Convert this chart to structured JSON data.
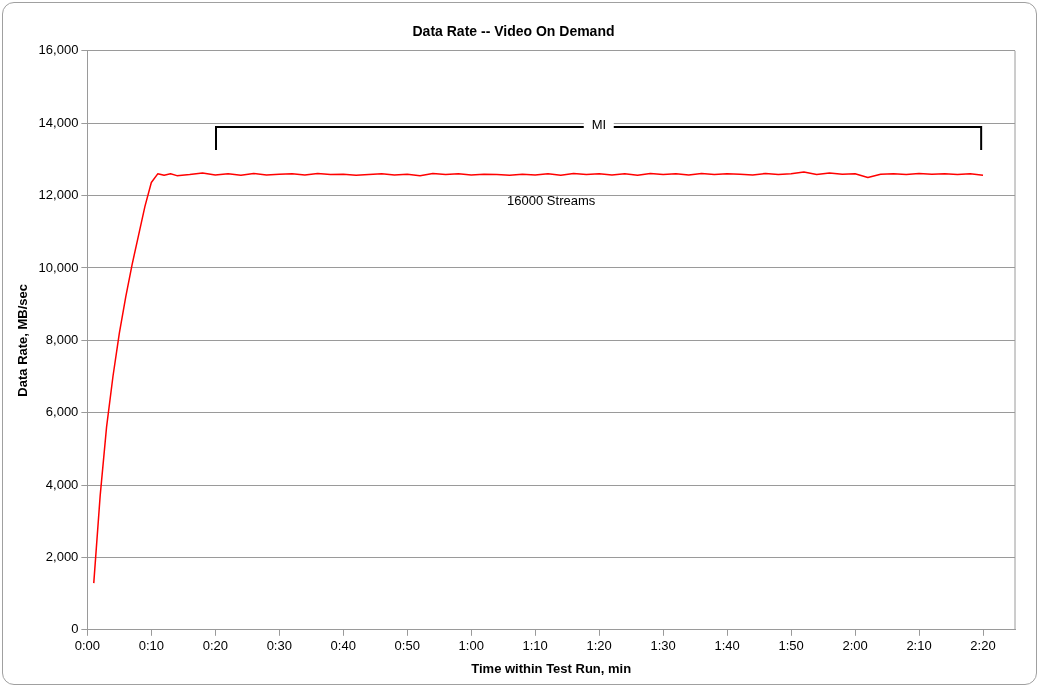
{
  "chart_data": {
    "type": "line",
    "title": "Data Rate -- Video On Demand",
    "xlabel": "Time within Test Run, min",
    "ylabel": "Data Rate, MB/sec",
    "series": [
      {
        "name": "16000 Streams",
        "color": "#ff0000",
        "x": [
          1,
          2,
          3,
          4,
          5,
          6,
          7,
          8,
          9,
          10,
          11,
          12,
          13,
          14,
          16,
          18,
          20,
          22,
          24,
          26,
          28,
          30,
          32,
          34,
          36,
          38,
          40,
          42,
          44,
          46,
          48,
          50,
          52,
          54,
          56,
          58,
          60,
          62,
          64,
          66,
          68,
          70,
          72,
          74,
          76,
          78,
          80,
          82,
          84,
          86,
          88,
          90,
          92,
          94,
          96,
          98,
          100,
          102,
          104,
          106,
          108,
          110,
          112,
          114,
          116,
          118,
          120,
          122,
          124,
          126,
          128,
          130,
          132,
          134,
          136,
          138,
          140
        ],
        "values": [
          1290,
          3700,
          5600,
          7000,
          8200,
          9200,
          10100,
          10900,
          11700,
          12360,
          12600,
          12560,
          12600,
          12550,
          12580,
          12620,
          12570,
          12600,
          12560,
          12610,
          12570,
          12590,
          12600,
          12570,
          12610,
          12580,
          12590,
          12560,
          12580,
          12600,
          12570,
          12590,
          12550,
          12610,
          12580,
          12600,
          12570,
          12590,
          12580,
          12560,
          12590,
          12570,
          12600,
          12560,
          12610,
          12580,
          12600,
          12570,
          12600,
          12560,
          12610,
          12580,
          12600,
          12570,
          12610,
          12580,
          12600,
          12590,
          12570,
          12610,
          12580,
          12600,
          12650,
          12580,
          12620,
          12590,
          12600,
          12500,
          12590,
          12600,
          12580,
          12610,
          12590,
          12600,
          12580,
          12600,
          12560
        ]
      }
    ],
    "xlim": [
      0,
      145
    ],
    "xticks": [
      {
        "value": 0,
        "label": "0:00"
      },
      {
        "value": 10,
        "label": "0:10"
      },
      {
        "value": 20,
        "label": "0:20"
      },
      {
        "value": 30,
        "label": "0:30"
      },
      {
        "value": 40,
        "label": "0:40"
      },
      {
        "value": 50,
        "label": "0:50"
      },
      {
        "value": 60,
        "label": "1:00"
      },
      {
        "value": 70,
        "label": "1:10"
      },
      {
        "value": 80,
        "label": "1:20"
      },
      {
        "value": 90,
        "label": "1:30"
      },
      {
        "value": 100,
        "label": "1:40"
      },
      {
        "value": 110,
        "label": "1:50"
      },
      {
        "value": 120,
        "label": "2:00"
      },
      {
        "value": 130,
        "label": "2:10"
      },
      {
        "value": 140,
        "label": "2:20"
      }
    ],
    "ylim": [
      0,
      16000
    ],
    "yticks": [
      0,
      {
        "value": 2000,
        "label": "2,000"
      },
      {
        "value": 4000,
        "label": "4,000"
      },
      {
        "value": 6000,
        "label": "6,000"
      },
      {
        "value": 8000,
        "label": "8,000"
      },
      {
        "value": 10000,
        "label": "10,000"
      },
      {
        "value": 12000,
        "label": "12,000"
      },
      {
        "value": 14000,
        "label": "14,000"
      },
      {
        "value": 16000,
        "label": "16,000"
      }
    ],
    "grid": "y",
    "marker": "none",
    "line_style": "solid",
    "annotations": [
      "MI"
    ]
  }
}
